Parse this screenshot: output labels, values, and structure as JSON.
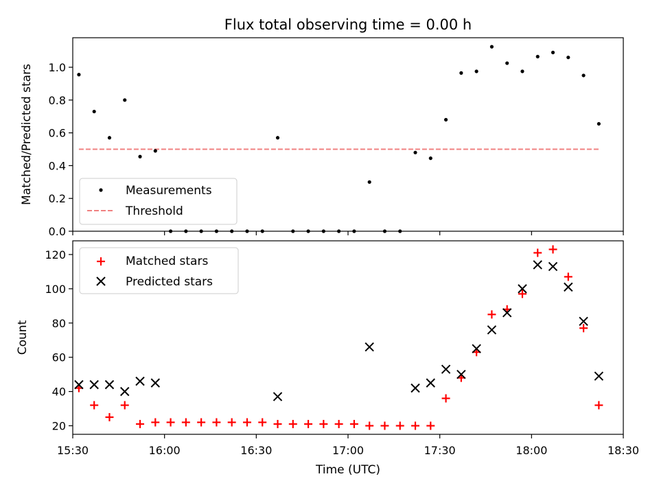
{
  "chart_data": [
    {
      "type": "scatter",
      "title": "Flux total observing time = 0.00 h",
      "xlabel": "",
      "ylabel": "Matched/Predicted stars",
      "xlim": [
        "15:30",
        "18:30"
      ],
      "ylim": [
        0,
        1.18
      ],
      "yticks": [
        "0.0",
        "0.2",
        "0.4",
        "0.6",
        "0.8",
        "1.0"
      ],
      "legend": "lower-left",
      "series": [
        {
          "name": "Measurements",
          "color": "#000000",
          "marker": "dot",
          "x": [
            "15:32",
            "15:37",
            "15:42",
            "15:47",
            "15:52",
            "15:57",
            "16:02",
            "16:07",
            "16:12",
            "16:17",
            "16:22",
            "16:27",
            "16:32",
            "16:37",
            "16:42",
            "16:47",
            "16:52",
            "16:57",
            "17:02",
            "17:07",
            "17:12",
            "17:17",
            "17:22",
            "17:27",
            "17:32",
            "17:37",
            "17:42",
            "17:47",
            "17:52",
            "17:57",
            "18:02",
            "18:07",
            "18:12",
            "18:17",
            "18:22"
          ],
          "y": [
            0.955,
            0.73,
            0.57,
            0.8,
            0.455,
            0.49,
            0.0,
            0.0,
            0.0,
            0.0,
            0.0,
            0.0,
            0.0,
            0.57,
            0.0,
            0.0,
            0.0,
            0.0,
            0.0,
            0.3,
            0.0,
            0.0,
            0.48,
            0.445,
            0.68,
            0.965,
            0.975,
            1.125,
            1.025,
            0.975,
            1.065,
            1.09,
            1.06,
            0.95,
            0.655
          ]
        },
        {
          "name": "Threshold",
          "color": "#f08080",
          "style": "dashed",
          "x": [
            "15:32",
            "18:22"
          ],
          "y": [
            0.5,
            0.5
          ]
        }
      ]
    },
    {
      "type": "scatter",
      "title": "",
      "xlabel": "Time (UTC)",
      "ylabel": "Count",
      "xlim": [
        "15:30",
        "18:30"
      ],
      "xticks": [
        "15:30",
        "16:00",
        "16:30",
        "17:00",
        "17:30",
        "18:00",
        "18:30"
      ],
      "ylim": [
        15,
        128
      ],
      "yticks": [
        "20",
        "40",
        "60",
        "80",
        "100",
        "120"
      ],
      "legend": "upper-left",
      "series": [
        {
          "name": "Matched stars",
          "color": "#ff0000",
          "marker": "plus",
          "x": [
            "15:32",
            "15:37",
            "15:42",
            "15:47",
            "15:52",
            "15:57",
            "16:02",
            "16:07",
            "16:12",
            "16:17",
            "16:22",
            "16:27",
            "16:32",
            "16:37",
            "16:42",
            "16:47",
            "16:52",
            "16:57",
            "17:02",
            "17:07",
            "17:12",
            "17:17",
            "17:22",
            "17:27",
            "17:32",
            "17:37",
            "17:42",
            "17:47",
            "17:52",
            "17:57",
            "18:02",
            "18:07",
            "18:12",
            "18:17",
            "18:22"
          ],
          "y": [
            42,
            32,
            25,
            32,
            21,
            22,
            22,
            22,
            22,
            22,
            22,
            22,
            22,
            21,
            21,
            21,
            21,
            21,
            21,
            20,
            20,
            20,
            20,
            20,
            36,
            48,
            63,
            85,
            88,
            97,
            121,
            123,
            107,
            77,
            32
          ]
        },
        {
          "name": "Predicted stars",
          "color": "#000000",
          "marker": "x",
          "x": [
            "15:32",
            "15:37",
            "15:42",
            "15:47",
            "15:52",
            "15:57",
            "16:37",
            "17:07",
            "17:22",
            "17:27",
            "17:32",
            "17:37",
            "17:42",
            "17:47",
            "17:52",
            "17:57",
            "18:02",
            "18:07",
            "18:12",
            "18:17",
            "18:22"
          ],
          "y": [
            44,
            44,
            44,
            40,
            46,
            45,
            37,
            66,
            42,
            45,
            53,
            50,
            65,
            76,
            86,
            100,
            114,
            113,
            101,
            81,
            49
          ]
        }
      ]
    }
  ]
}
